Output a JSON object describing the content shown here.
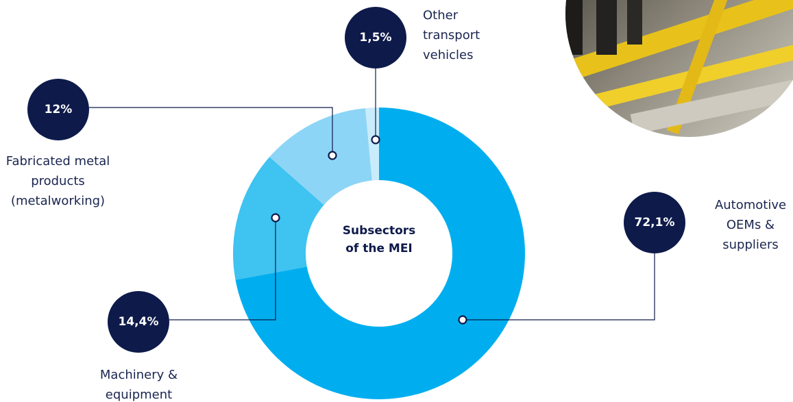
{
  "chart_data": {
    "type": "donut",
    "title": "Subsectors of the MEI",
    "categories": [
      "Automotive OEMs & suppliers",
      "Machinery & equipment",
      "Fabricated metal products (metalworking)",
      "Other transport vehicles"
    ],
    "values": [
      72.1,
      14.4,
      12,
      1.5
    ],
    "value_labels": [
      "72,1%",
      "14,4%",
      "12%",
      "1,5%"
    ],
    "colors": [
      "#00aeef",
      "#3fc3f1",
      "#8dd5f6",
      "#c9ecfb"
    ]
  }
}
